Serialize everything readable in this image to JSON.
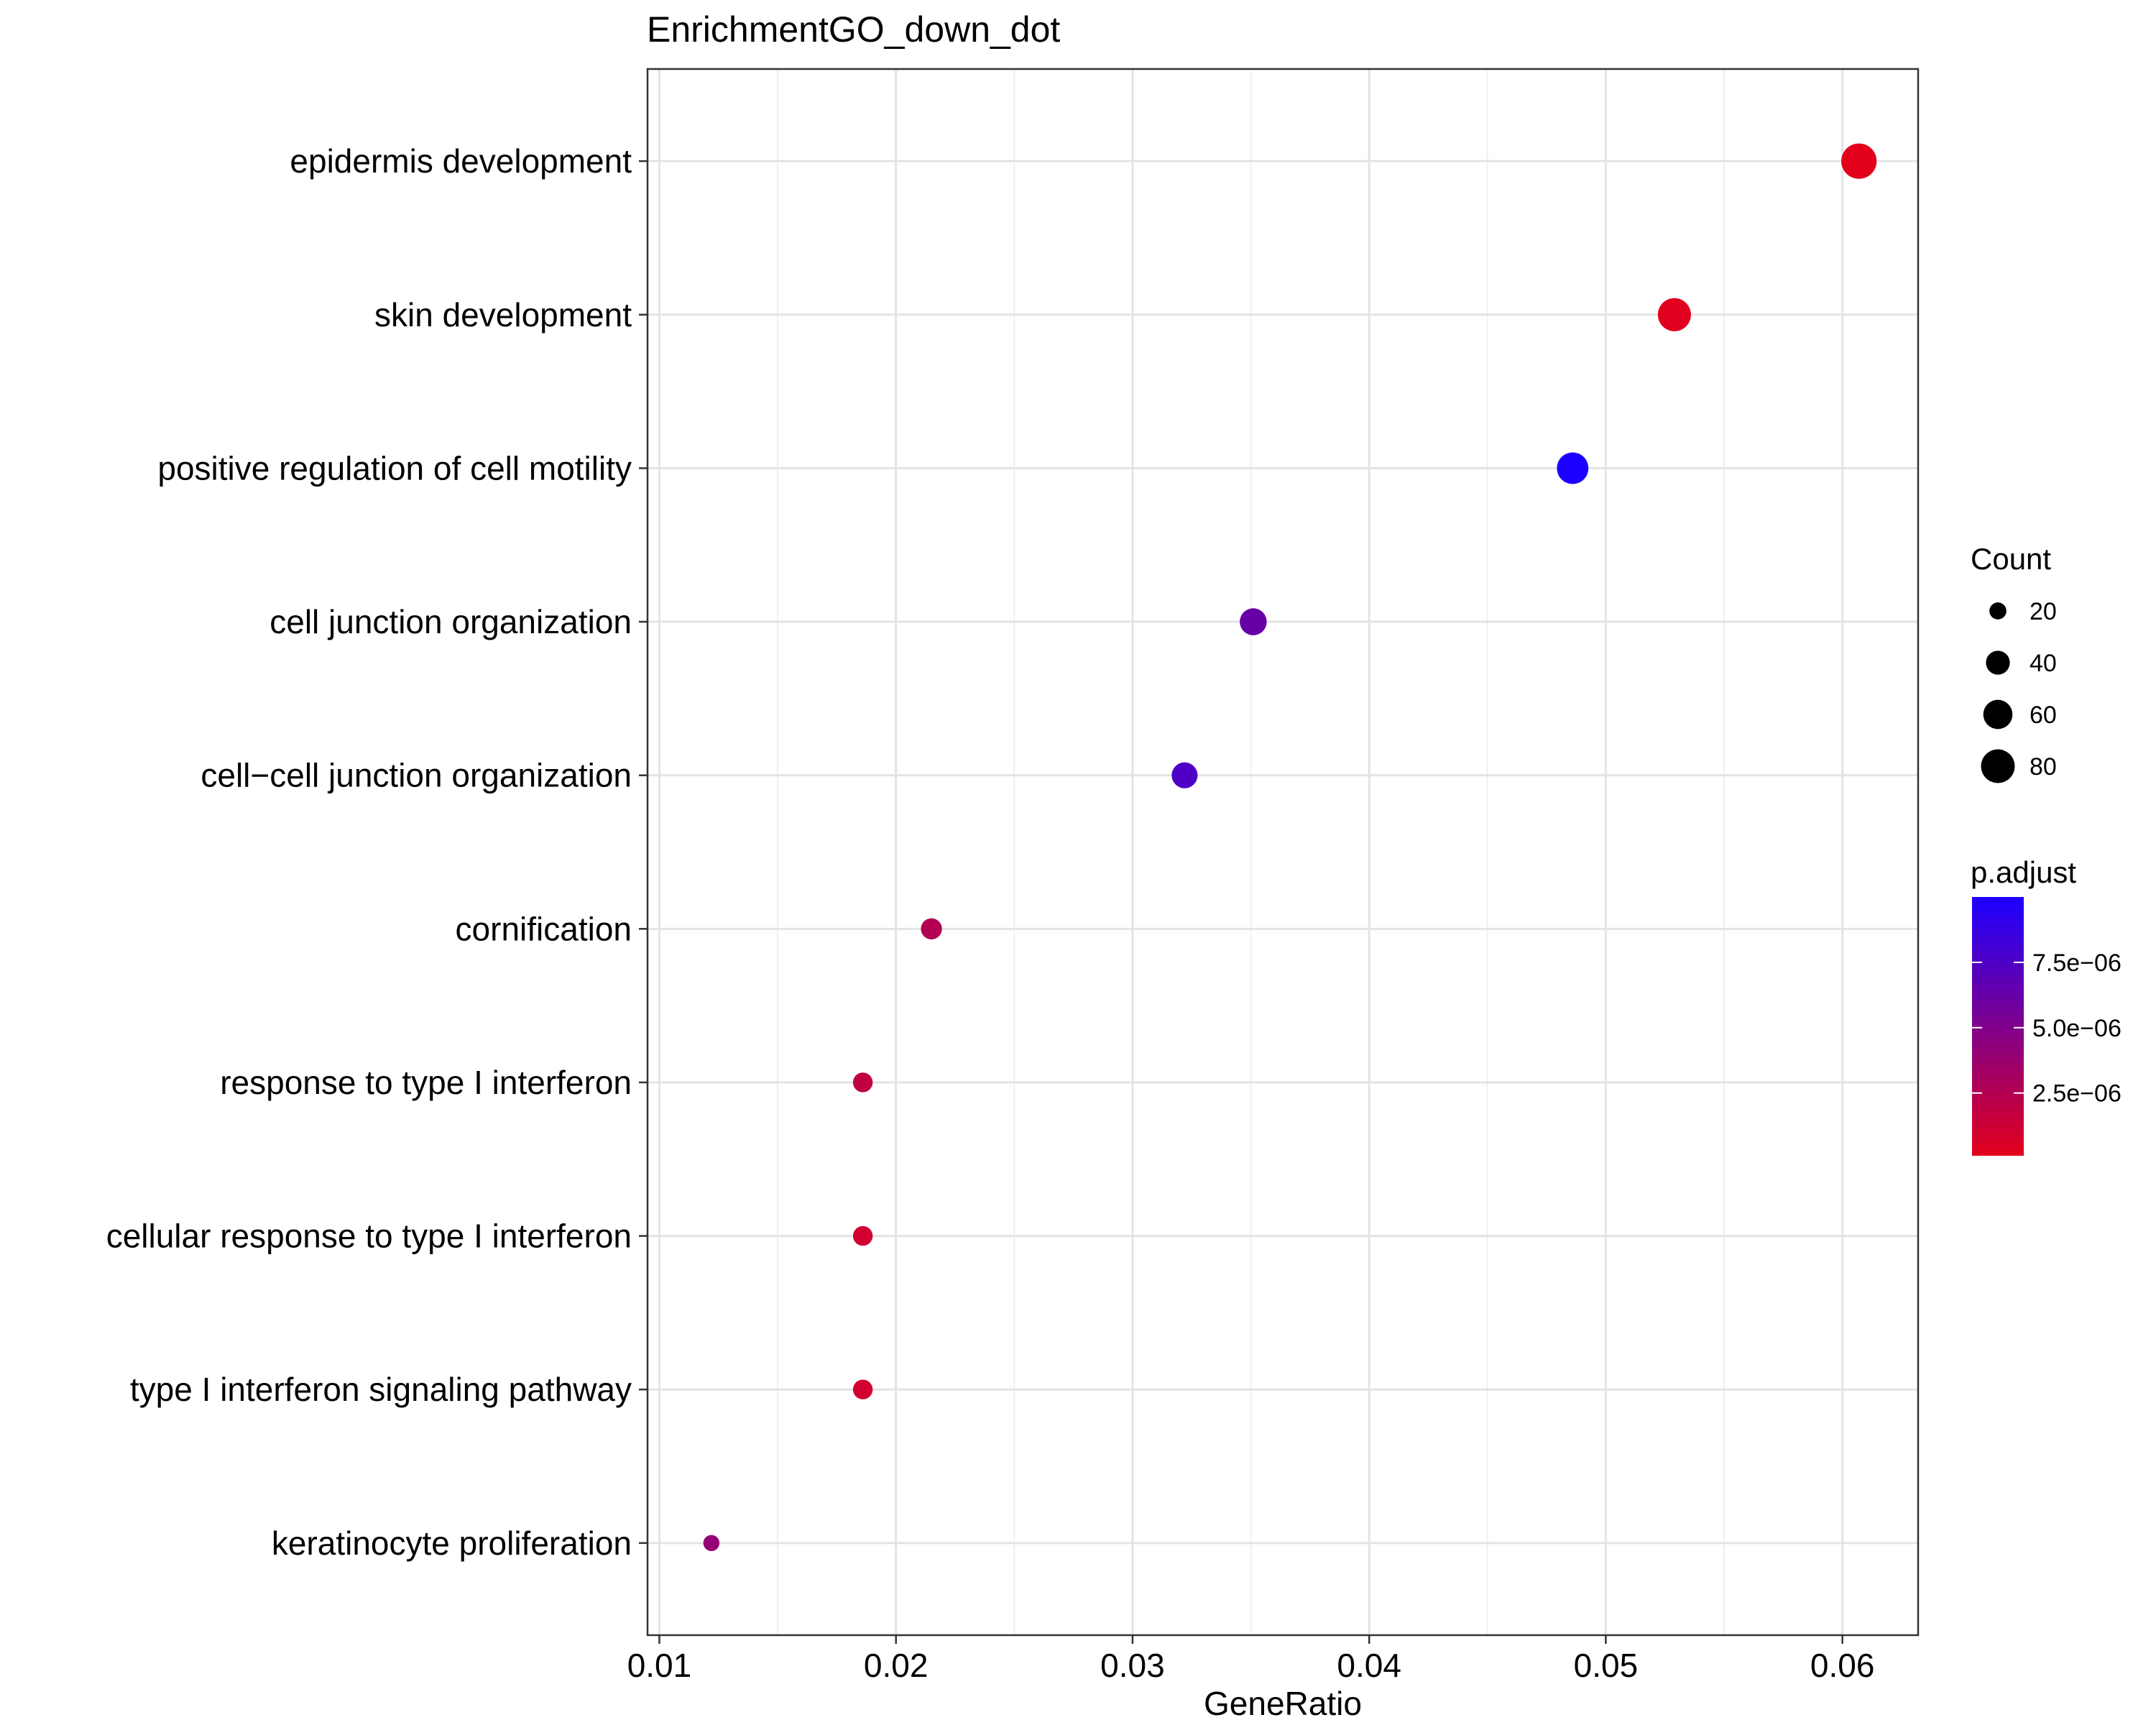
{
  "chart_data": {
    "type": "scatter",
    "title": "EnrichmentGO_down_dot",
    "xlabel": "GeneRatio",
    "ylabel": "",
    "xlim": [
      0.0095,
      0.0632
    ],
    "xticks": [
      "0.01",
      "0.02",
      "0.03",
      "0.04",
      "0.05",
      "0.06"
    ],
    "xtick_values": [
      0.01,
      0.02,
      0.03,
      0.04,
      0.05,
      0.06
    ],
    "grid": true,
    "categories": [
      "epidermis development",
      "skin development",
      "positive regulation of cell motility",
      "cell junction organization",
      "cell−cell junction organization",
      "cornification",
      "response to type I interferon",
      "cellular response to type I interferon",
      "type I interferon signaling pathway",
      "keratinocyte proliferation"
    ],
    "points": [
      {
        "term": "epidermis development",
        "gene_ratio": 0.0607,
        "count": 88,
        "p_adjust": 1e-07
      },
      {
        "term": "skin development",
        "gene_ratio": 0.0529,
        "count": 77,
        "p_adjust": 2e-07
      },
      {
        "term": "positive regulation of cell motility",
        "gene_ratio": 0.0486,
        "count": 70,
        "p_adjust": 1e-05
      },
      {
        "term": "cell junction organization",
        "gene_ratio": 0.0351,
        "count": 51,
        "p_adjust": 6.2e-06
      },
      {
        "term": "cell−cell junction organization",
        "gene_ratio": 0.0322,
        "count": 47,
        "p_adjust": 7.5e-06
      },
      {
        "term": "cornification",
        "gene_ratio": 0.0215,
        "count": 31,
        "p_adjust": 2.5e-06
      },
      {
        "term": "response to type I interferon",
        "gene_ratio": 0.0186,
        "count": 27,
        "p_adjust": 1.8e-06
      },
      {
        "term": "cellular response to type I interferon",
        "gene_ratio": 0.0186,
        "count": 27,
        "p_adjust": 1e-06
      },
      {
        "term": "type I interferon signaling pathway",
        "gene_ratio": 0.0186,
        "count": 27,
        "p_adjust": 1e-06
      },
      {
        "term": "keratinocyte proliferation",
        "gene_ratio": 0.0122,
        "count": 18,
        "p_adjust": 4e-06
      }
    ],
    "legend_size": {
      "title": "Count",
      "entries": [
        {
          "label": "20",
          "value": 20
        },
        {
          "label": "40",
          "value": 40
        },
        {
          "label": "60",
          "value": 60
        },
        {
          "label": "80",
          "value": 80
        }
      ]
    },
    "legend_color": {
      "title": "p.adjust",
      "low_color": "#e3001b",
      "high_color": "#1c00ff",
      "range": [
        1e-07,
        1e-05
      ],
      "ticks": [
        {
          "label": "7.5e−06",
          "value": 7.5e-06
        },
        {
          "label": "5.0e−06",
          "value": 5e-06
        },
        {
          "label": "2.5e−06",
          "value": 2.5e-06
        }
      ]
    },
    "legend_position": "right"
  }
}
